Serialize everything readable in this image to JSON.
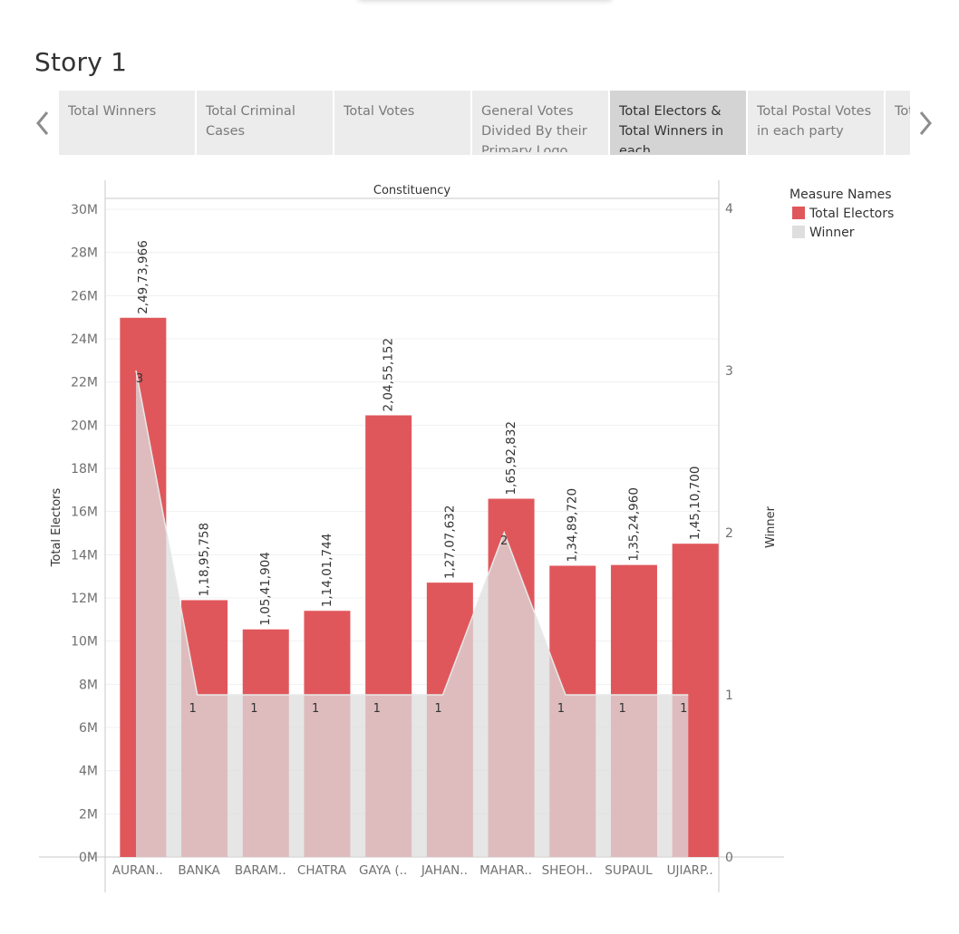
{
  "story": {
    "title": "Story 1"
  },
  "tabs": [
    {
      "label": "Total Winners",
      "active": false
    },
    {
      "label": "Total Criminal Cases",
      "active": false
    },
    {
      "label": "Total Votes",
      "active": false
    },
    {
      "label": "General Votes Divided By their Primary Logo",
      "active": false
    },
    {
      "label": "Total Electors & Total Winners in each Constituency",
      "active": true
    },
    {
      "label": "Total Postal Votes in each party",
      "active": false
    },
    {
      "label": "Total State",
      "active": false
    }
  ],
  "legend": {
    "title": "Measure Names",
    "items": [
      {
        "label": "Total Electors",
        "color": "#e0575b"
      },
      {
        "label": "Winner",
        "color": "#dedede"
      }
    ]
  },
  "chart_data": {
    "type": "bar",
    "header": "Constituency",
    "categories": [
      "AURAN..",
      "BANKA",
      "BARAM..",
      "CHATRA",
      "GAYA (..",
      "JAHAN..",
      "MAHAR..",
      "SHEOH..",
      "SUPAUL",
      "UJIARP.."
    ],
    "series": [
      {
        "name": "Total Electors",
        "type": "bar",
        "axis": "left",
        "color": "#e0575b",
        "values": [
          24973966,
          11895758,
          10541904,
          11401744,
          20455152,
          12707632,
          16592832,
          13489720,
          13524960,
          14510700
        ],
        "labels": [
          "2,49,73,966",
          "1,18,95,758",
          "1,05,41,904",
          "1,14,01,744",
          "2,04,55,152",
          "1,27,07,632",
          "1,65,92,832",
          "1,34,89,720",
          "1,35,24,960",
          "1,45,10,700"
        ]
      },
      {
        "name": "Winner",
        "type": "area",
        "axis": "right",
        "color": "#dedede",
        "values": [
          3,
          1,
          1,
          1,
          1,
          1,
          2,
          1,
          1,
          1
        ],
        "labels": [
          "3",
          "1",
          "1",
          "1",
          "1",
          "1",
          "2",
          "1",
          "1",
          "1"
        ]
      }
    ],
    "left_axis": {
      "label": "Total Electors",
      "range": [
        0,
        30000000
      ],
      "ticks": [
        0,
        2000000,
        4000000,
        6000000,
        8000000,
        10000000,
        12000000,
        14000000,
        16000000,
        18000000,
        20000000,
        22000000,
        24000000,
        26000000,
        28000000,
        30000000
      ],
      "tick_labels": [
        "0M",
        "2M",
        "4M",
        "6M",
        "8M",
        "10M",
        "12M",
        "14M",
        "16M",
        "18M",
        "20M",
        "22M",
        "24M",
        "26M",
        "28M",
        "30M"
      ]
    },
    "right_axis": {
      "label": "Winner",
      "range": [
        0,
        4
      ],
      "ticks": [
        0,
        1,
        2,
        3,
        4
      ],
      "tick_labels": [
        "0",
        "1",
        "2",
        "3",
        "4"
      ]
    },
    "grid": true,
    "legend_position": "right"
  }
}
